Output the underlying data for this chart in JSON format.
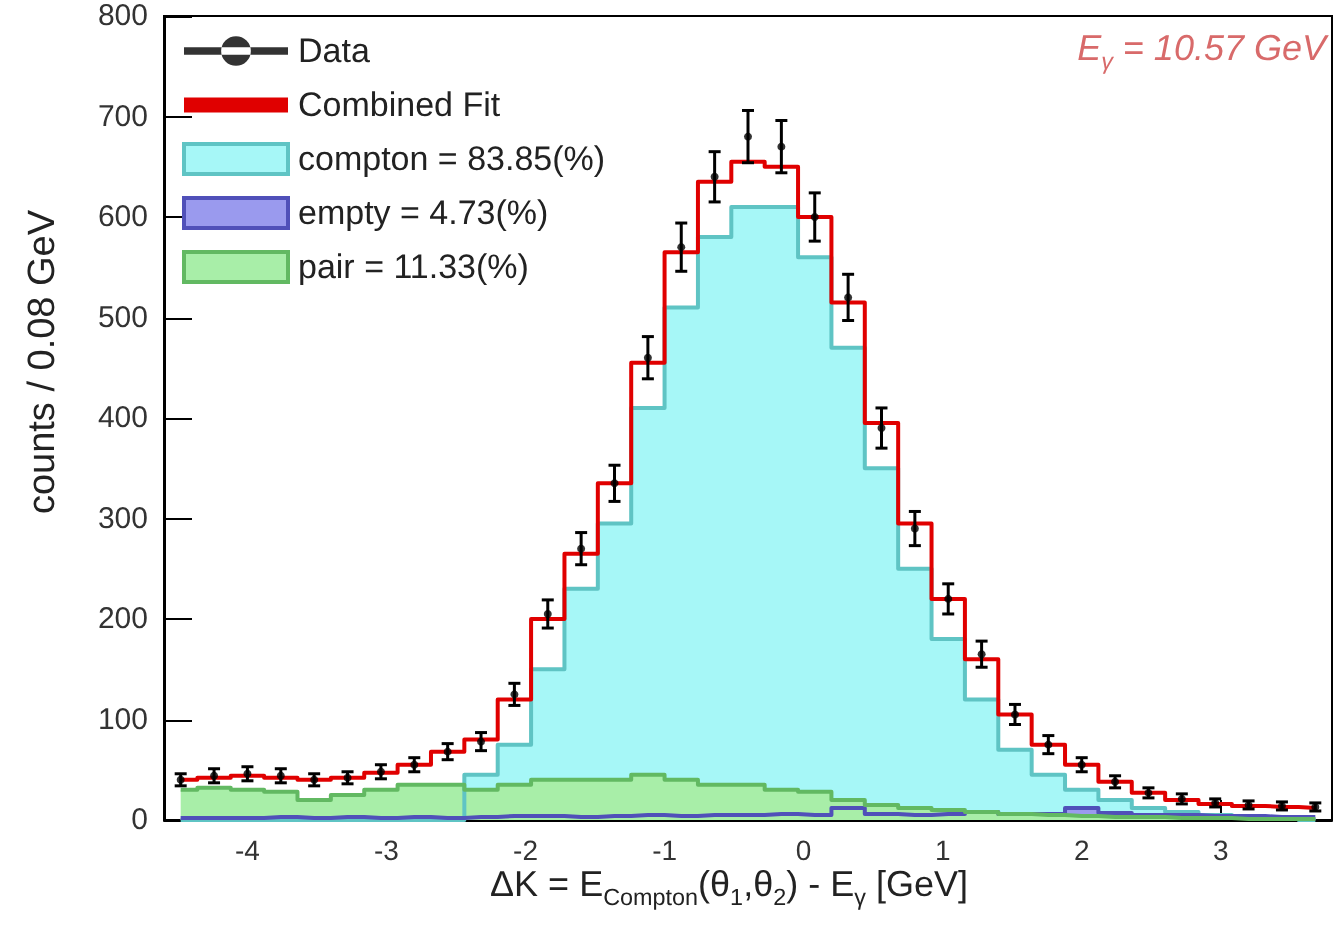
{
  "chart_data": {
    "type": "area",
    "xlabel": "ΔK = E$_{Compton}$(θ$_{1}$,θ$_{2}$) - E$_{γ}$ [GeV]",
    "ylabel": "counts / 0.08 GeV",
    "annotations": [
      "E$_{γ}$ = 10.57 GeV"
    ],
    "xlim": [
      -4.6,
      3.8
    ],
    "xticks": [
      -4,
      -3,
      -2,
      -1,
      0,
      1,
      2,
      3
    ],
    "ylim": [
      0,
      800
    ],
    "yticks": [
      0,
      100,
      200,
      300,
      400,
      500,
      600,
      700,
      800
    ],
    "legend": "top left",
    "grid": false,
    "x": [
      -4.48,
      -4.24,
      -4.0,
      -3.76,
      -3.52,
      -3.28,
      -3.04,
      -2.8,
      -2.56,
      -2.32,
      -2.08,
      -1.84,
      -1.6,
      -1.36,
      -1.12,
      -0.88,
      -0.64,
      -0.4,
      -0.16,
      0.08,
      0.32,
      0.56,
      0.8,
      1.04,
      1.28,
      1.52,
      1.76,
      2.0,
      2.24,
      2.48,
      2.72,
      2.96,
      3.2,
      3.44,
      3.68
    ],
    "series": [
      {
        "name": "Data",
        "type": "scatter",
        "marker": "circle",
        "color": "#000000",
        "x": [
          -4.48,
          -4.24,
          -4.0,
          -3.76,
          -3.52,
          -3.28,
          -3.04,
          -2.8,
          -2.56,
          -2.32,
          -2.08,
          -1.84,
          -1.6,
          -1.36,
          -1.12,
          -0.88,
          -0.64,
          -0.4,
          -0.16,
          0.08,
          0.32,
          0.56,
          0.8,
          1.04,
          1.28,
          1.52,
          1.76,
          2.0,
          2.24,
          2.48,
          2.72,
          2.96,
          3.2,
          3.44,
          3.68
        ],
        "values": [
          40,
          44,
          46,
          44,
          40,
          42,
          48,
          55,
          68,
          78,
          125,
          205,
          270,
          335,
          460,
          570,
          640,
          680,
          670,
          600,
          520,
          390,
          290,
          220,
          165,
          105,
          75,
          55,
          38,
          27,
          21,
          17,
          15,
          14,
          13
        ],
        "errors": [
          6,
          7,
          7,
          7,
          6,
          6,
          7,
          7,
          8,
          9,
          11,
          14,
          16,
          18,
          21,
          24,
          25,
          26,
          26,
          24,
          23,
          20,
          17,
          15,
          13,
          10,
          9,
          7,
          6,
          5,
          5,
          4,
          4,
          4,
          4
        ]
      },
      {
        "name": "Combined Fit",
        "type": "step",
        "color": "#e00000",
        "x": [
          -4.48,
          -4.24,
          -4.0,
          -3.76,
          -3.52,
          -3.28,
          -3.04,
          -2.8,
          -2.56,
          -2.32,
          -2.08,
          -1.84,
          -1.6,
          -1.36,
          -1.12,
          -0.88,
          -0.64,
          -0.4,
          -0.16,
          0.08,
          0.32,
          0.56,
          0.8,
          1.04,
          1.28,
          1.52,
          1.76,
          2.0,
          2.24,
          2.48,
          2.72,
          2.96,
          3.2,
          3.44,
          3.68
        ],
        "values": [
          40,
          42,
          44,
          42,
          40,
          42,
          47,
          55,
          68,
          80,
          120,
          200,
          265,
          335,
          455,
          565,
          635,
          655,
          650,
          600,
          515,
          395,
          295,
          220,
          160,
          105,
          75,
          55,
          38,
          27,
          20,
          16,
          14,
          13,
          12
        ]
      },
      {
        "name": "compton = 83.85(%)",
        "color": "#a6f7f7",
        "values": [
          0,
          0,
          0,
          0,
          0,
          0,
          0,
          0,
          0,
          45,
          75,
          150,
          230,
          295,
          410,
          510,
          580,
          610,
          610,
          560,
          470,
          350,
          250,
          180,
          120,
          70,
          45,
          30,
          20,
          12,
          8,
          5,
          3,
          2,
          0
        ]
      },
      {
        "name": "empty = 4.73(%)",
        "color": "#9a9aee",
        "values": [
          2,
          2,
          2,
          3,
          2,
          3,
          2,
          3,
          2,
          3,
          4,
          4,
          3,
          4,
          5,
          4,
          5,
          5,
          6,
          5,
          12,
          6,
          5,
          6,
          8,
          6,
          6,
          12,
          7,
          5,
          5,
          4,
          4,
          3,
          3
        ]
      },
      {
        "name": "pair = 11.33(%)",
        "color": "#a8eea8",
        "values": [
          30,
          32,
          30,
          28,
          20,
          25,
          30,
          35,
          35,
          30,
          35,
          40,
          40,
          40,
          45,
          40,
          35,
          35,
          30,
          28,
          20,
          15,
          12,
          10,
          8,
          6,
          5,
          4,
          3,
          3,
          2,
          2,
          1,
          1,
          1
        ]
      }
    ]
  }
}
